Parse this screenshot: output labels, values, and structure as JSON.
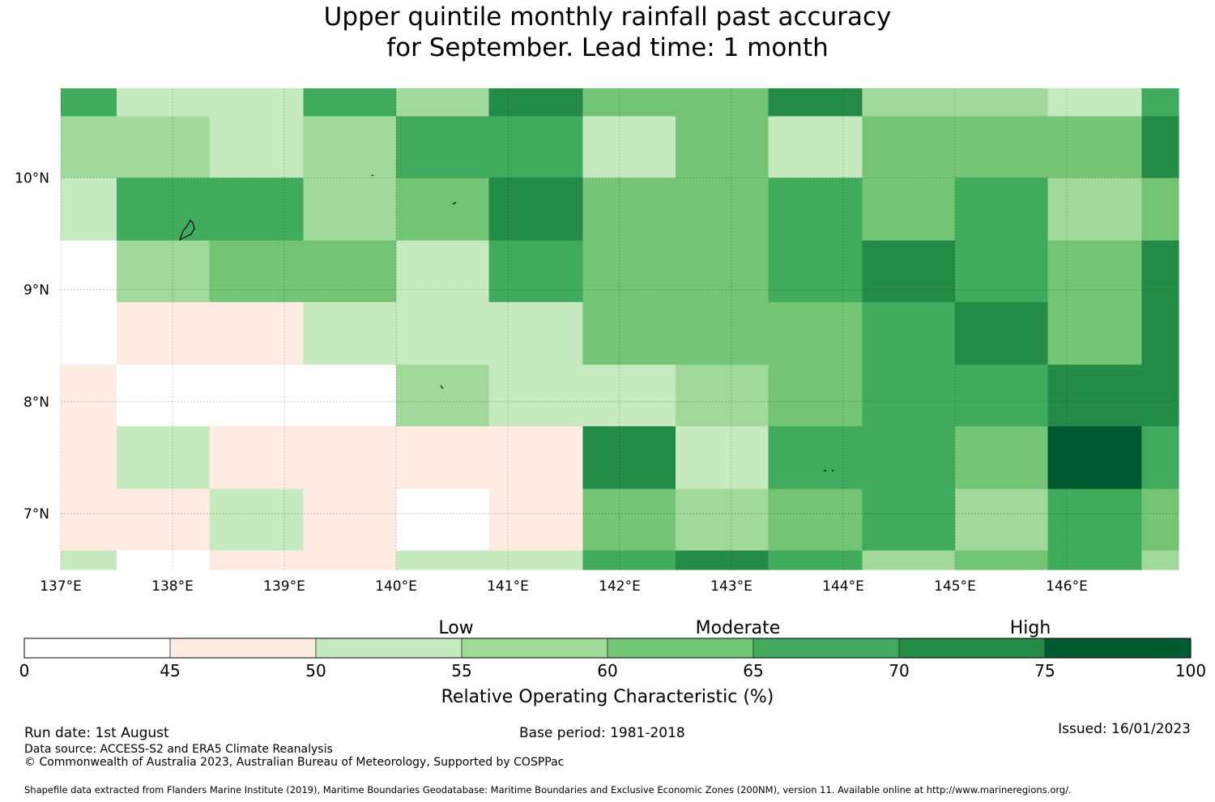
{
  "title_line1": "Upper quintile monthly rainfall past accuracy",
  "title_line2": "for September. Lead time: 1 month",
  "map": {
    "lon_range": [
      137,
      147
    ],
    "lat_range": [
      6.5,
      10.8
    ],
    "lon_ticks": [
      {
        "v": 137,
        "label": "137°E"
      },
      {
        "v": 138,
        "label": "138°E"
      },
      {
        "v": 139,
        "label": "139°E"
      },
      {
        "v": 140,
        "label": "140°E"
      },
      {
        "v": 141,
        "label": "141°E"
      },
      {
        "v": 142,
        "label": "142°E"
      },
      {
        "v": 143,
        "label": "143°E"
      },
      {
        "v": 144,
        "label": "144°E"
      },
      {
        "v": 145,
        "label": "145°E"
      },
      {
        "v": 146,
        "label": "146°E"
      }
    ],
    "lat_ticks": [
      {
        "v": 10,
        "label": "10°N"
      },
      {
        "v": 9,
        "label": "9°N"
      },
      {
        "v": 8,
        "label": "8°N"
      },
      {
        "v": 7,
        "label": "7°N"
      }
    ],
    "lon_edges": [
      137,
      137.5,
      138.33,
      139.17,
      140,
      140.83,
      141.67,
      142.5,
      143.33,
      144.17,
      145,
      145.83,
      146.67,
      147
    ],
    "lat_edges": [
      10.8,
      10.55,
      10,
      9.44,
      8.89,
      8.33,
      7.78,
      7.22,
      6.67,
      6.5
    ],
    "class_colors": [
      "#ffffff",
      "#feebe2",
      "#c7e9c0",
      "#a1d99b",
      "#74c476",
      "#41ab5d",
      "#238b45",
      "#005a32"
    ],
    "grid_classes": [
      [
        5,
        2,
        2,
        5,
        3,
        6,
        4,
        4,
        6,
        3,
        3,
        2,
        5
      ],
      [
        3,
        3,
        2,
        3,
        5,
        5,
        2,
        4,
        2,
        4,
        4,
        4,
        6
      ],
      [
        2,
        5,
        5,
        3,
        4,
        6,
        4,
        4,
        5,
        4,
        5,
        3,
        4
      ],
      [
        0,
        3,
        4,
        4,
        2,
        5,
        4,
        4,
        5,
        6,
        5,
        4,
        6
      ],
      [
        0,
        1,
        1,
        2,
        2,
        2,
        4,
        4,
        4,
        5,
        6,
        4,
        6
      ],
      [
        1,
        0,
        0,
        0,
        3,
        2,
        2,
        3,
        4,
        5,
        5,
        6,
        6
      ],
      [
        1,
        2,
        1,
        1,
        1,
        1,
        6,
        2,
        5,
        5,
        4,
        7,
        5
      ],
      [
        1,
        1,
        2,
        1,
        0,
        1,
        4,
        3,
        4,
        5,
        3,
        5,
        4
      ],
      [
        2,
        0,
        1,
        1,
        2,
        2,
        5,
        6,
        5,
        3,
        4,
        5,
        3
      ]
    ]
  },
  "legend": {
    "category_labels": [
      "Low",
      "Moderate",
      "High"
    ],
    "tick_labels": [
      "0",
      "45",
      "50",
      "55",
      "60",
      "65",
      "70",
      "75",
      "100"
    ],
    "axis_label": "Relative Operating Characteristic (%)"
  },
  "run_date": "Run date: 1st August",
  "base_period": "Base period: 1981-2018",
  "issued": "Issued: 16/01/2023",
  "data_source": "Data source: ACCESS-S2 and ERA5 Climate Reanalysis",
  "copyright": "© Commonwealth of Australia 2023, Australian Bureau of Meteorology, Supported by COSPPac",
  "shapefile_credit": "Shapefile data extracted from Flanders Marine Institute (2019), Maritime Boundaries Geodatabase: Maritime Boundaries and Exclusive Economic Zones (200NM), version 11. Available online at http://www.marineregions.org/."
}
